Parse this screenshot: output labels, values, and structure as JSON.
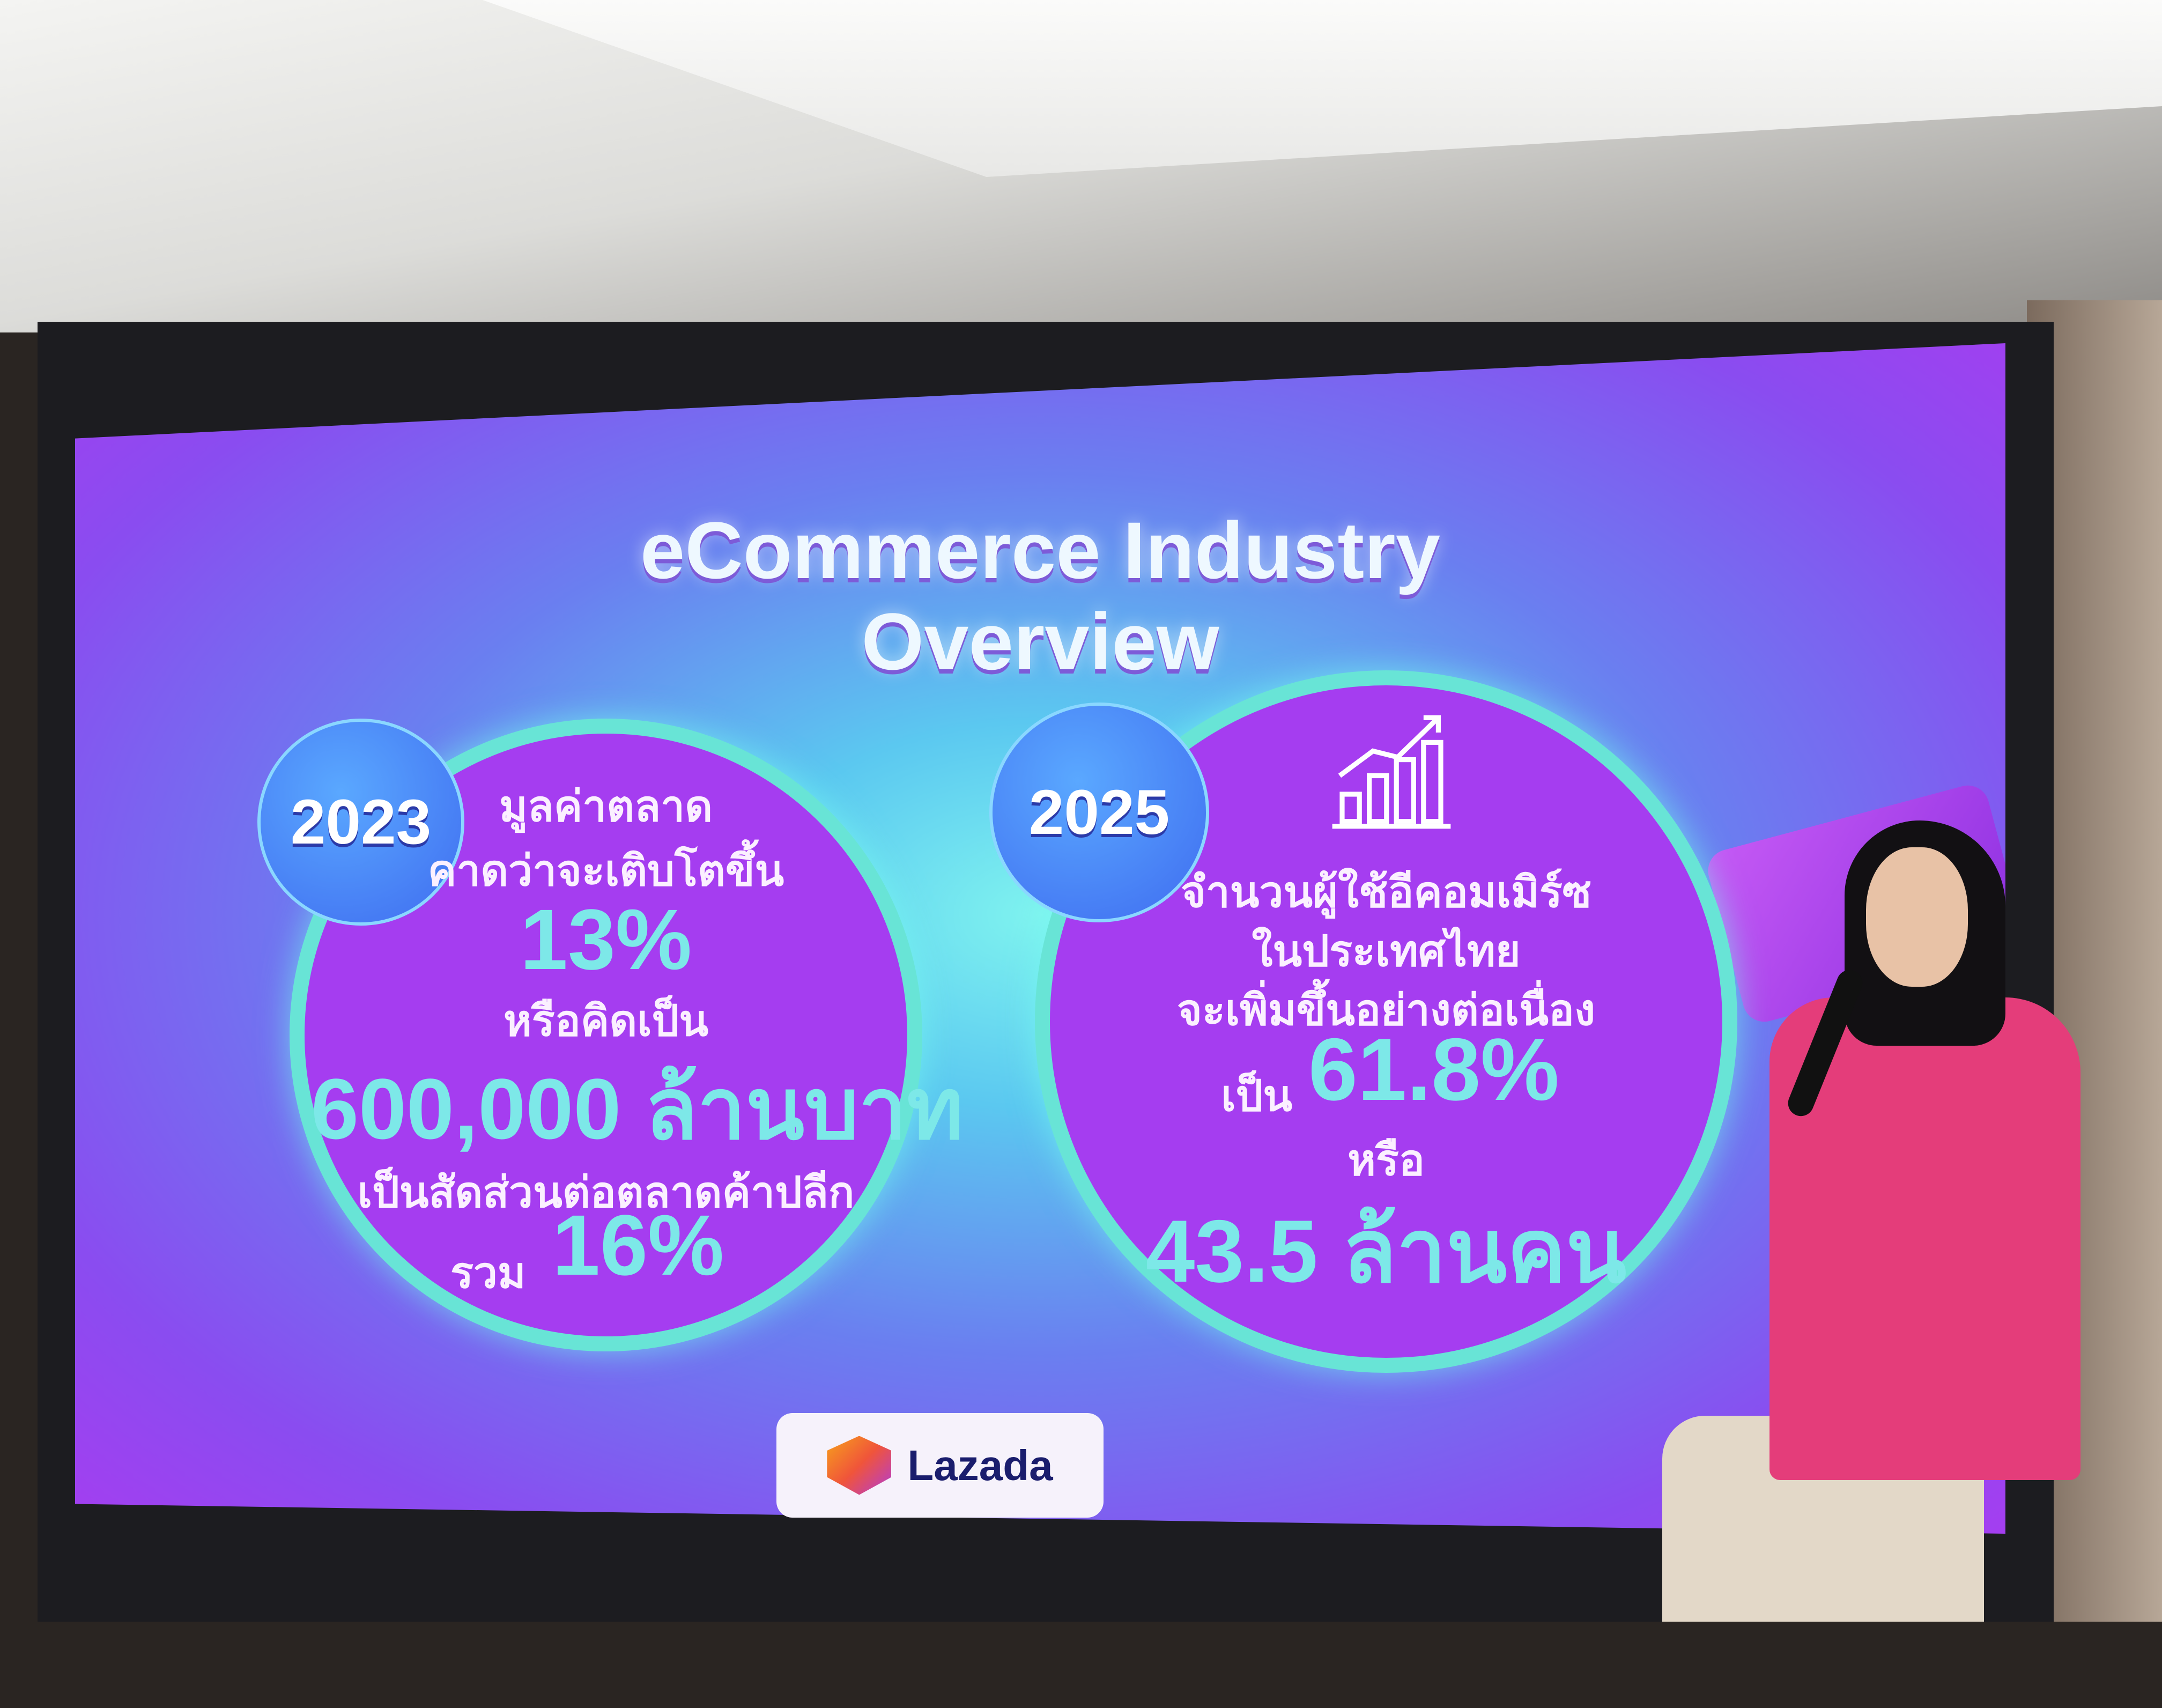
{
  "slide": {
    "title_line1": "eCommerce Industry",
    "title_line2": "Overview",
    "left": {
      "year": "2023",
      "line1": "มูลค่าตลาด",
      "line2": "คาดว่าจะเติบโตขึ้น",
      "growth": "13%",
      "line3": "หรือคิดเป็น",
      "value": "600,000 ล้านบาท",
      "line4": "เป็นสัดส่วนต่อตลาดค้าปลีก",
      "total_label": "รวม",
      "share": "16%"
    },
    "right": {
      "year": "2025",
      "icon": "growth-chart-icon",
      "line1": "จำนวนผู้ใช้อีคอมเมิร์ซ",
      "line2": "ในประเทศไทย",
      "line3": "จะเพิ่มขึ้นอย่างต่อเนื่อง",
      "prefix": "เป็น",
      "percent": "61.8%",
      "or": "หรือ",
      "users": "43.5 ล้านคน"
    },
    "logo": "Lazada",
    "colors": {
      "circle": "#a53df0",
      "accent": "#7de8e8",
      "badge": "#3f6cf0"
    }
  }
}
